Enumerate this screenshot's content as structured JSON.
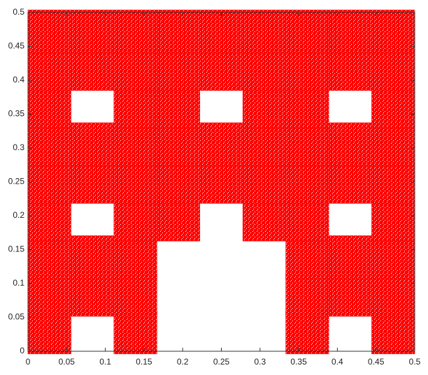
{
  "chart_data": {
    "type": "scatter",
    "series": [
      {
        "color": "#ff0000",
        "x": [
          0.0278,
          0.1389,
          0.3611,
          0.4722,
          0.0278,
          0.0833,
          0.1389,
          0.3611,
          0.4167,
          0.4722,
          0.0278,
          0.0833,
          0.1389,
          0.3611,
          0.4167,
          0.4722,
          0.0278,
          0.1389,
          0.1944,
          0.3056,
          0.3611,
          0.4722,
          0.0278,
          0.0833,
          0.1389,
          0.1944,
          0.25,
          0.3056,
          0.3611,
          0.4167,
          0.4722,
          0.0278,
          0.0833,
          0.1389,
          0.1944,
          0.25,
          0.3056,
          0.3611,
          0.4167,
          0.4722,
          0.0278,
          0.1389,
          0.1944,
          0.3056,
          0.3611,
          0.4722,
          0.0278,
          0.0833,
          0.1389,
          0.1944,
          0.25,
          0.3056,
          0.3611,
          0.4167,
          0.4722,
          0.0278,
          0.0833,
          0.1389,
          0.1944,
          0.25,
          0.3056,
          0.3611,
          0.4167,
          0.4722
        ],
        "y": [
          0.0278,
          0.0278,
          0.0278,
          0.0278,
          0.0833,
          0.0833,
          0.0833,
          0.0833,
          0.0833,
          0.0833,
          0.1389,
          0.1389,
          0.1389,
          0.1389,
          0.1389,
          0.1389,
          0.1944,
          0.1944,
          0.1944,
          0.1944,
          0.1944,
          0.1944,
          0.25,
          0.25,
          0.25,
          0.25,
          0.25,
          0.25,
          0.25,
          0.25,
          0.25,
          0.3056,
          0.3056,
          0.3056,
          0.3056,
          0.3056,
          0.3056,
          0.3056,
          0.3056,
          0.3056,
          0.3611,
          0.3611,
          0.3611,
          0.3611,
          0.3611,
          0.3611,
          0.4167,
          0.4167,
          0.4167,
          0.4167,
          0.4167,
          0.4167,
          0.4167,
          0.4167,
          0.4167,
          0.4722,
          0.4722,
          0.4722,
          0.4722,
          0.4722,
          0.4722,
          0.4722,
          0.4722,
          0.4722
        ]
      }
    ],
    "xlim": [
      0,
      0.5
    ],
    "ylim": [
      0,
      0.5
    ],
    "xticks": [
      0,
      0.05,
      0.1,
      0.15,
      0.2,
      0.25,
      0.3,
      0.35,
      0.4,
      0.45,
      0.5
    ],
    "yticks": [
      0,
      0.05,
      0.1,
      0.15,
      0.2,
      0.25,
      0.3,
      0.35,
      0.4,
      0.45,
      0.5
    ]
  }
}
